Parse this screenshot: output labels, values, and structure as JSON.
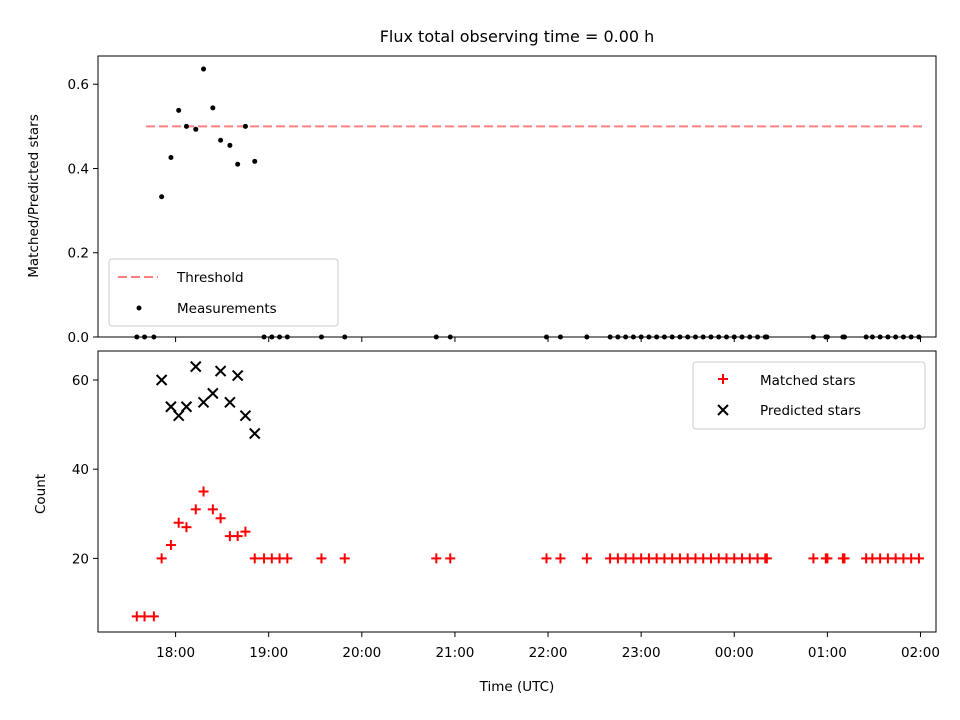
{
  "title": "Flux total observing time = 0.00 h",
  "chart_data": [
    {
      "type": "scatter",
      "ylabel": "Matched/Predicted stars",
      "xlabel": "",
      "ylim": [
        0,
        0.667
      ],
      "yticks": [
        0.0,
        0.2,
        0.4,
        0.6
      ],
      "ytick_labels": [
        "0.0",
        "0.2",
        "0.4",
        "0.6"
      ],
      "threshold": {
        "name": "Threshold",
        "value": 0.5,
        "x_range": [
          "17:41",
          "02:01"
        ],
        "color": "#ff7f7f"
      },
      "series": [
        {
          "name": "Measurements",
          "color": "#000000",
          "points": [
            [
              "17:35",
              0
            ],
            [
              "17:40",
              0
            ],
            [
              "17:46",
              0
            ],
            [
              "17:51",
              0.333
            ],
            [
              "17:57",
              0.426
            ],
            [
              "18:02",
              0.538
            ],
            [
              "18:07",
              0.5
            ],
            [
              "18:13",
              0.493
            ],
            [
              "18:18",
              0.636
            ],
            [
              "18:24",
              0.544
            ],
            [
              "18:29",
              0.467
            ],
            [
              "18:35",
              0.455
            ],
            [
              "18:40",
              0.41
            ],
            [
              "18:45",
              0.5
            ],
            [
              "18:51",
              0.417
            ],
            [
              "18:57",
              0
            ],
            [
              "19:02",
              0
            ],
            [
              "19:07",
              0
            ],
            [
              "19:12",
              0
            ],
            [
              "19:34",
              0
            ],
            [
              "19:49",
              0
            ],
            [
              "20:48",
              0
            ],
            [
              "20:57",
              0
            ],
            [
              "21:59",
              0
            ],
            [
              "22:08",
              0
            ],
            [
              "22:25",
              0
            ],
            [
              "22:40",
              0
            ],
            [
              "22:45",
              0
            ],
            [
              "22:50",
              0
            ],
            [
              "22:55",
              0
            ],
            [
              "23:00",
              0
            ],
            [
              "23:05",
              0
            ],
            [
              "23:10",
              0
            ],
            [
              "23:15",
              0
            ],
            [
              "23:20",
              0
            ],
            [
              "23:25",
              0
            ],
            [
              "23:30",
              0
            ],
            [
              "23:35",
              0
            ],
            [
              "23:40",
              0
            ],
            [
              "23:45",
              0
            ],
            [
              "23:50",
              0
            ],
            [
              "23:55",
              0
            ],
            [
              "00:00",
              0
            ],
            [
              "00:05",
              0
            ],
            [
              "00:10",
              0
            ],
            [
              "00:15",
              0
            ],
            [
              "00:20",
              0
            ],
            [
              "00:21",
              0
            ],
            [
              "00:51",
              0
            ],
            [
              "00:59",
              0
            ],
            [
              "01:00",
              0
            ],
            [
              "01:10",
              0
            ],
            [
              "01:11",
              0
            ],
            [
              "01:25",
              0
            ],
            [
              "01:29",
              0
            ],
            [
              "01:34",
              0
            ],
            [
              "01:39",
              0
            ],
            [
              "01:44",
              0
            ],
            [
              "01:49",
              0
            ],
            [
              "01:54",
              0
            ],
            [
              "01:59",
              0
            ]
          ]
        }
      ]
    },
    {
      "type": "scatter",
      "ylabel": "Count",
      "xlabel": "Time (UTC)",
      "ylim": [
        3.5,
        66.5
      ],
      "yticks": [
        20,
        40,
        60
      ],
      "ytick_labels": [
        "20",
        "40",
        "60"
      ],
      "xlim": [
        "17:10",
        "02:10"
      ],
      "xticks": [
        "18:00",
        "19:00",
        "20:00",
        "21:00",
        "22:00",
        "23:00",
        "00:00",
        "01:00",
        "02:00"
      ],
      "series": [
        {
          "name": "Matched stars",
          "marker": "+",
          "color": "#ff0000",
          "points": [
            [
              "17:35",
              7
            ],
            [
              "17:40",
              7
            ],
            [
              "17:46",
              7
            ],
            [
              "17:51",
              20
            ],
            [
              "17:57",
              23
            ],
            [
              "18:02",
              28
            ],
            [
              "18:07",
              27
            ],
            [
              "18:13",
              31
            ],
            [
              "18:18",
              35
            ],
            [
              "18:24",
              31
            ],
            [
              "18:29",
              29
            ],
            [
              "18:35",
              25
            ],
            [
              "18:40",
              25
            ],
            [
              "18:45",
              26
            ],
            [
              "18:51",
              20
            ],
            [
              "18:57",
              20
            ],
            [
              "19:02",
              20
            ],
            [
              "19:07",
              20
            ],
            [
              "19:12",
              20
            ],
            [
              "19:34",
              20
            ],
            [
              "19:49",
              20
            ],
            [
              "20:48",
              20
            ],
            [
              "20:57",
              20
            ],
            [
              "21:59",
              20
            ],
            [
              "22:08",
              20
            ],
            [
              "22:25",
              20
            ],
            [
              "22:40",
              20
            ],
            [
              "22:45",
              20
            ],
            [
              "22:50",
              20
            ],
            [
              "22:55",
              20
            ],
            [
              "23:00",
              20
            ],
            [
              "23:05",
              20
            ],
            [
              "23:10",
              20
            ],
            [
              "23:15",
              20
            ],
            [
              "23:20",
              20
            ],
            [
              "23:25",
              20
            ],
            [
              "23:30",
              20
            ],
            [
              "23:35",
              20
            ],
            [
              "23:40",
              20
            ],
            [
              "23:45",
              20
            ],
            [
              "23:50",
              20
            ],
            [
              "23:55",
              20
            ],
            [
              "00:00",
              20
            ],
            [
              "00:05",
              20
            ],
            [
              "00:10",
              20
            ],
            [
              "00:15",
              20
            ],
            [
              "00:20",
              20
            ],
            [
              "00:21",
              20
            ],
            [
              "00:51",
              20
            ],
            [
              "00:59",
              20
            ],
            [
              "01:00",
              20
            ],
            [
              "01:10",
              20
            ],
            [
              "01:11",
              20
            ],
            [
              "01:25",
              20
            ],
            [
              "01:29",
              20
            ],
            [
              "01:34",
              20
            ],
            [
              "01:39",
              20
            ],
            [
              "01:44",
              20
            ],
            [
              "01:49",
              20
            ],
            [
              "01:54",
              20
            ],
            [
              "01:59",
              20
            ]
          ]
        },
        {
          "name": "Predicted stars",
          "marker": "x",
          "color": "#000000",
          "points": [
            [
              "17:51",
              60
            ],
            [
              "17:57",
              54
            ],
            [
              "18:02",
              52
            ],
            [
              "18:07",
              54
            ],
            [
              "18:13",
              63
            ],
            [
              "18:18",
              55
            ],
            [
              "18:24",
              57
            ],
            [
              "18:29",
              62
            ],
            [
              "18:35",
              55
            ],
            [
              "18:40",
              61
            ],
            [
              "18:45",
              52
            ],
            [
              "18:51",
              48
            ]
          ]
        }
      ]
    }
  ]
}
